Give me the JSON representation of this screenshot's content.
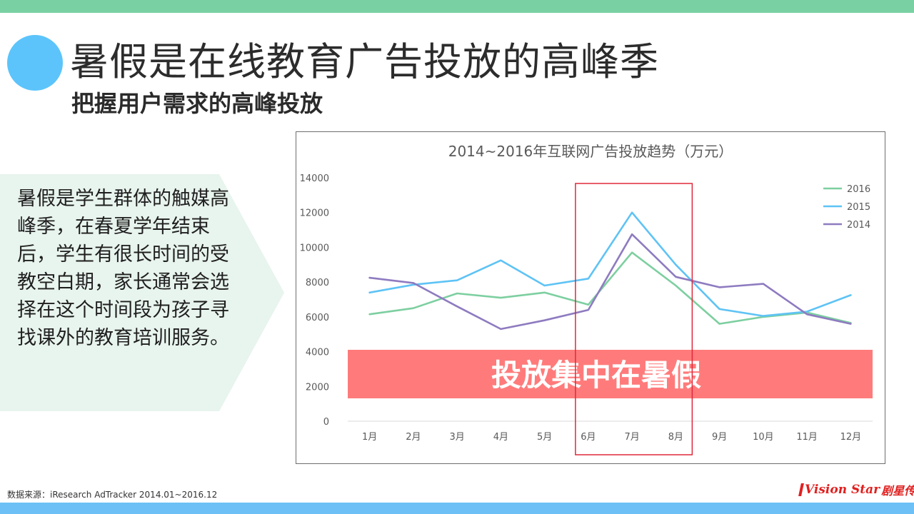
{
  "header": {
    "title": "暑假是在线教育广告投放的高峰季",
    "subtitle": "把握用户需求的高峰投放"
  },
  "panel": {
    "text": "暑假是学生群体的触媒高峰季，在春夏学年结束后，学生有很长时间的受教空白期，家长通常会选择在这个时间段为孩子寻找课外的教育培训服务。"
  },
  "chart_data": {
    "type": "line",
    "title": "2014~2016年互联网广告投放趋势（万元）",
    "categories": [
      "1月",
      "2月",
      "3月",
      "4月",
      "5月",
      "6月",
      "7月",
      "8月",
      "9月",
      "10月",
      "11月",
      "12月"
    ],
    "y_ticks": [
      "0",
      "2000",
      "4000",
      "6000",
      "8000",
      "10000",
      "12000",
      "14000"
    ],
    "ylim": [
      0,
      14000
    ],
    "legend_position": "top-right",
    "series": [
      {
        "name": "2016",
        "color": "#7dcfa0",
        "values": [
          6150,
          6500,
          7350,
          7100,
          7400,
          6700,
          9700,
          7800,
          5600,
          6000,
          6250,
          5650
        ]
      },
      {
        "name": "2015",
        "color": "#5ec3f5",
        "values": [
          7400,
          7850,
          8100,
          9250,
          7800,
          8200,
          12000,
          9000,
          6450,
          6050,
          6300,
          7250
        ]
      },
      {
        "name": "2014",
        "color": "#8e7bc0",
        "values": [
          8250,
          7950,
          6600,
          5300,
          5800,
          6400,
          10750,
          8300,
          7700,
          7900,
          6150,
          5600
        ]
      }
    ],
    "highlight": {
      "from": "6月",
      "to": "8月",
      "color": "#e0283a"
    },
    "banner": {
      "text": "投放集中在暑假",
      "color": "#ff7b7b",
      "text_color": "#ffffff"
    }
  },
  "footer": {
    "source": "数据来源：iResearch AdTracker 2014.01~2016.12",
    "logo_en": "Vision Star",
    "logo_cn": "剧星传媒"
  }
}
